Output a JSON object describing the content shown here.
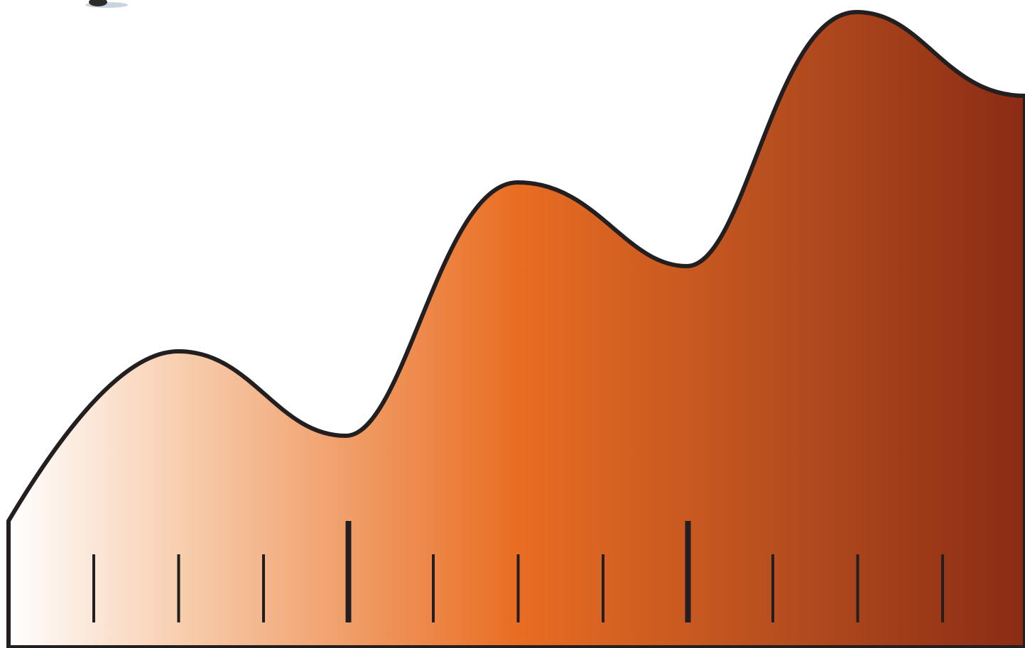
{
  "figure": {
    "kind": "ruler-profile",
    "colors": {
      "background": "#ffffff",
      "outline": "#231f20",
      "gradient_stops": [
        "#ffffff",
        "#f7cbaa",
        "#e96d22",
        "#b84f1f",
        "#8a2c14"
      ]
    },
    "ruler": {
      "tick_count": 11,
      "major_tick_indices": [
        3,
        7
      ]
    },
    "corner_blot": {
      "visible": true,
      "colors": [
        "#2b2b2b",
        "#c9d3e0"
      ]
    }
  }
}
